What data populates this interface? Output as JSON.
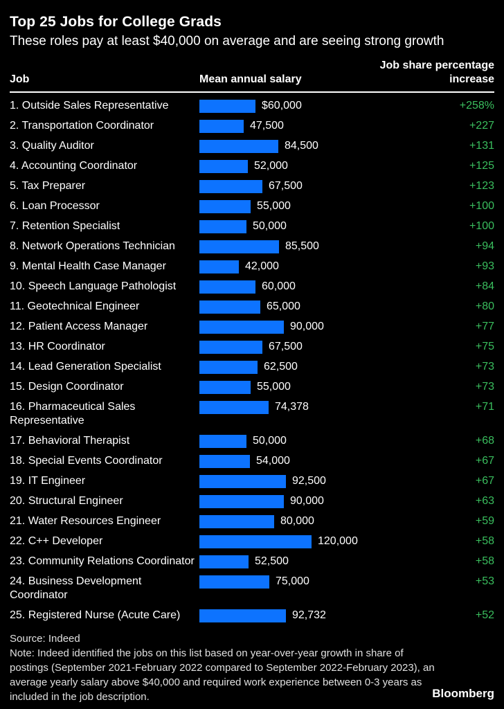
{
  "header": {
    "title": "Top 25 Jobs for College Grads",
    "subtitle": "These roles pay at least $40,000 on average and are seeing strong growth"
  },
  "columns": {
    "job": "Job",
    "salary": "Mean annual salary",
    "pct": "Job share percentage increase"
  },
  "colors": {
    "background": "#000000",
    "bar": "#0d73ff",
    "positive": "#3abe5e",
    "text": "#ffffff",
    "footer_text": "#e0e0e0"
  },
  "rows": [
    {
      "label": "1. Outside Sales Representative",
      "salary": 60000,
      "salary_label": "$60,000",
      "pct": 258,
      "pct_label": "+258%"
    },
    {
      "label": "2. Transportation Coordinator",
      "salary": 47500,
      "salary_label": "47,500",
      "pct": 227,
      "pct_label": "+227"
    },
    {
      "label": "3. Quality Auditor",
      "salary": 84500,
      "salary_label": "84,500",
      "pct": 131,
      "pct_label": "+131"
    },
    {
      "label": "4. Accounting Coordinator",
      "salary": 52000,
      "salary_label": "52,000",
      "pct": 125,
      "pct_label": "+125"
    },
    {
      "label": "5. Tax Preparer",
      "salary": 67500,
      "salary_label": "67,500",
      "pct": 123,
      "pct_label": "+123"
    },
    {
      "label": "6. Loan Processor",
      "salary": 55000,
      "salary_label": "55,000",
      "pct": 100,
      "pct_label": "+100"
    },
    {
      "label": "7. Retention Specialist",
      "salary": 50000,
      "salary_label": "50,000",
      "pct": 100,
      "pct_label": "+100"
    },
    {
      "label": "8. Network Operations Technician",
      "salary": 85500,
      "salary_label": "85,500",
      "pct": 94,
      "pct_label": "+94"
    },
    {
      "label": "9. Mental Health Case Manager",
      "salary": 42000,
      "salary_label": "42,000",
      "pct": 93,
      "pct_label": "+93"
    },
    {
      "label": "10. Speech Language Pathologist",
      "salary": 60000,
      "salary_label": "60,000",
      "pct": 84,
      "pct_label": "+84"
    },
    {
      "label": "11. Geotechnical Engineer",
      "salary": 65000,
      "salary_label": "65,000",
      "pct": 80,
      "pct_label": "+80"
    },
    {
      "label": "12. Patient Access Manager",
      "salary": 90000,
      "salary_label": "90,000",
      "pct": 77,
      "pct_label": "+77"
    },
    {
      "label": "13. HR Coordinator",
      "salary": 67500,
      "salary_label": "67,500",
      "pct": 75,
      "pct_label": "+75"
    },
    {
      "label": "14. Lead Generation Specialist",
      "salary": 62500,
      "salary_label": "62,500",
      "pct": 73,
      "pct_label": "+73"
    },
    {
      "label": "15. Design Coordinator",
      "salary": 55000,
      "salary_label": "55,000",
      "pct": 73,
      "pct_label": "+73"
    },
    {
      "label": "16. Pharmaceutical Sales Representative",
      "salary": 74378,
      "salary_label": "74,378",
      "pct": 71,
      "pct_label": "+71"
    },
    {
      "label": "17. Behavioral Therapist",
      "salary": 50000,
      "salary_label": "50,000",
      "pct": 68,
      "pct_label": "+68"
    },
    {
      "label": "18. Special Events Coordinator",
      "salary": 54000,
      "salary_label": "54,000",
      "pct": 67,
      "pct_label": "+67"
    },
    {
      "label": "19. IT Engineer",
      "salary": 92500,
      "salary_label": "92,500",
      "pct": 67,
      "pct_label": "+67"
    },
    {
      "label": "20. Structural Engineer",
      "salary": 90000,
      "salary_label": "90,000",
      "pct": 63,
      "pct_label": "+63"
    },
    {
      "label": "21. Water Resources Engineer",
      "salary": 80000,
      "salary_label": "80,000",
      "pct": 59,
      "pct_label": "+59"
    },
    {
      "label": "22. C++ Developer",
      "salary": 120000,
      "salary_label": "120,000",
      "pct": 58,
      "pct_label": "+58"
    },
    {
      "label": "23. Community Relations Coordinator",
      "salary": 52500,
      "salary_label": "52,500",
      "pct": 58,
      "pct_label": "+58"
    },
    {
      "label": "24. Business Development Coordinator",
      "salary": 75000,
      "salary_label": "75,000",
      "pct": 53,
      "pct_label": "+53"
    },
    {
      "label": "25. Registered Nurse (Acute Care)",
      "salary": 92732,
      "salary_label": "92,732",
      "pct": 52,
      "pct_label": "+52"
    }
  ],
  "chart_data": {
    "type": "bar",
    "orientation": "horizontal",
    "title": "Top 25 Jobs for College Grads",
    "subtitle": "These roles pay at least $40,000 on average and are seeing strong growth",
    "categories": [
      "Outside Sales Representative",
      "Transportation Coordinator",
      "Quality Auditor",
      "Accounting Coordinator",
      "Tax Preparer",
      "Loan Processor",
      "Retention Specialist",
      "Network Operations Technician",
      "Mental Health Case Manager",
      "Speech Language Pathologist",
      "Geotechnical Engineer",
      "Patient Access Manager",
      "HR Coordinator",
      "Lead Generation Specialist",
      "Design Coordinator",
      "Pharmaceutical Sales Representative",
      "Behavioral Therapist",
      "Special Events Coordinator",
      "IT Engineer",
      "Structural Engineer",
      "Water Resources Engineer",
      "C++ Developer",
      "Community Relations Coordinator",
      "Business Development Coordinator",
      "Registered Nurse (Acute Care)"
    ],
    "series": [
      {
        "name": "Mean annual salary",
        "unit": "USD",
        "values": [
          60000,
          47500,
          84500,
          52000,
          67500,
          55000,
          50000,
          85500,
          42000,
          60000,
          65000,
          90000,
          67500,
          62500,
          55000,
          74378,
          50000,
          54000,
          92500,
          90000,
          80000,
          120000,
          52500,
          75000,
          92732
        ]
      },
      {
        "name": "Job share percentage increase",
        "unit": "%",
        "values": [
          258,
          227,
          131,
          125,
          123,
          100,
          100,
          94,
          93,
          84,
          80,
          77,
          75,
          73,
          73,
          71,
          68,
          67,
          67,
          63,
          59,
          58,
          58,
          53,
          52
        ]
      }
    ],
    "xlim": [
      0,
      120000
    ],
    "grid": false,
    "legend": false,
    "bar_color": "#0d73ff",
    "value_labels": "right-of-bar"
  },
  "footer": {
    "source": "Source: Indeed",
    "note": "Note: Indeed identified the jobs on this list based on year-over-year growth in share of postings (September 2021-February 2022 compared to September 2022-February 2023), an average yearly salary above $40,000 and required work experience between 0-3 years as included in the job description.",
    "logo": "Bloomberg"
  }
}
